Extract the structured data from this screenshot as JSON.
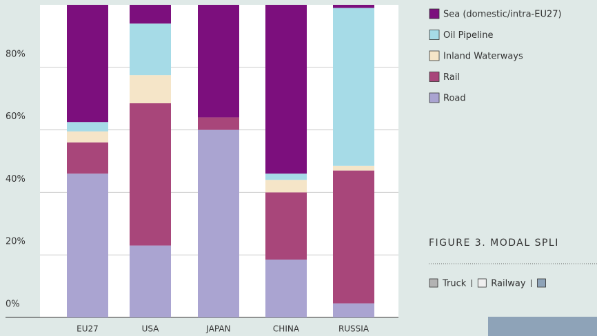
{
  "chart_data": {
    "type": "stacked_bar",
    "categories": [
      "EU27",
      "USA",
      "JAPAN",
      "CHINA",
      "RUSSIA"
    ],
    "series": [
      {
        "name": "Road",
        "color": "#aaa4d1",
        "values": [
          46,
          23,
          60,
          18.5,
          4.5
        ]
      },
      {
        "name": "Rail",
        "color": "#a8467a",
        "values": [
          10,
          45.5,
          4,
          21.5,
          42.5
        ]
      },
      {
        "name": "Inland Waterways",
        "color": "#f5e5c8",
        "values": [
          3.5,
          9,
          0,
          4,
          1.5
        ]
      },
      {
        "name": "Oil Pipeline",
        "color": "#a6dbe7",
        "values": [
          3,
          16.5,
          0,
          2,
          50.5
        ]
      },
      {
        "name": "Sea (domestic/intra-EU27)",
        "color": "#7c0f7d",
        "values": [
          37.5,
          6,
          36,
          54,
          1
        ]
      }
    ],
    "ylim": [
      0,
      100
    ],
    "yticks": [
      {
        "value": 0,
        "label": "0%"
      },
      {
        "value": 20,
        "label": "20%"
      },
      {
        "value": 40,
        "label": "40%"
      },
      {
        "value": 60,
        "label": "60%"
      },
      {
        "value": 80,
        "label": "80%"
      }
    ],
    "grid": true
  },
  "sidebar": {
    "caption": "FIGURE 3. MODAL SPLI",
    "legend": [
      "Truck",
      "Railway"
    ]
  }
}
